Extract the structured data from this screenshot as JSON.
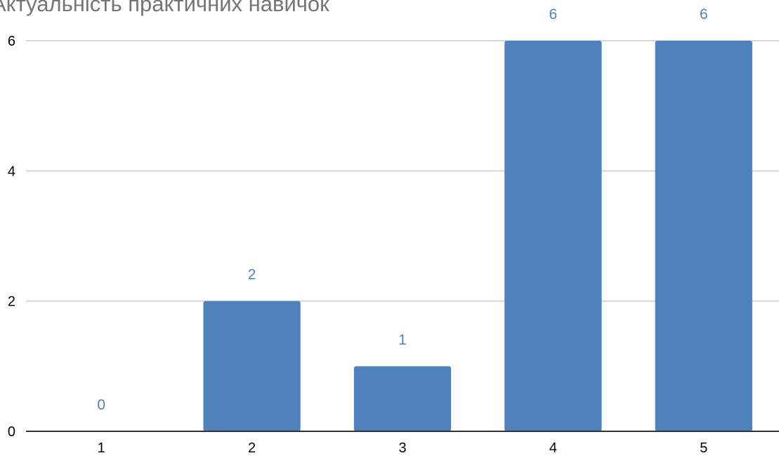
{
  "chart_data": {
    "type": "bar",
    "title": "Актуальність практичних навичок",
    "categories": [
      "1",
      "2",
      "3",
      "4",
      "5"
    ],
    "values": [
      0,
      2,
      1,
      6,
      6
    ],
    "data_labels": [
      "0",
      "2",
      "1",
      "6",
      "6"
    ],
    "ylim": [
      0,
      6
    ],
    "yticks": [
      0,
      2,
      4,
      6
    ],
    "ytick_labels": [
      "0",
      "2",
      "4",
      "6"
    ],
    "grid": true,
    "legend": "none",
    "colors": {
      "bar": "#4f81bd",
      "data_label": "#4f81bd",
      "grid": "#cccccc",
      "axis": "#333333",
      "title": "#757575"
    }
  }
}
